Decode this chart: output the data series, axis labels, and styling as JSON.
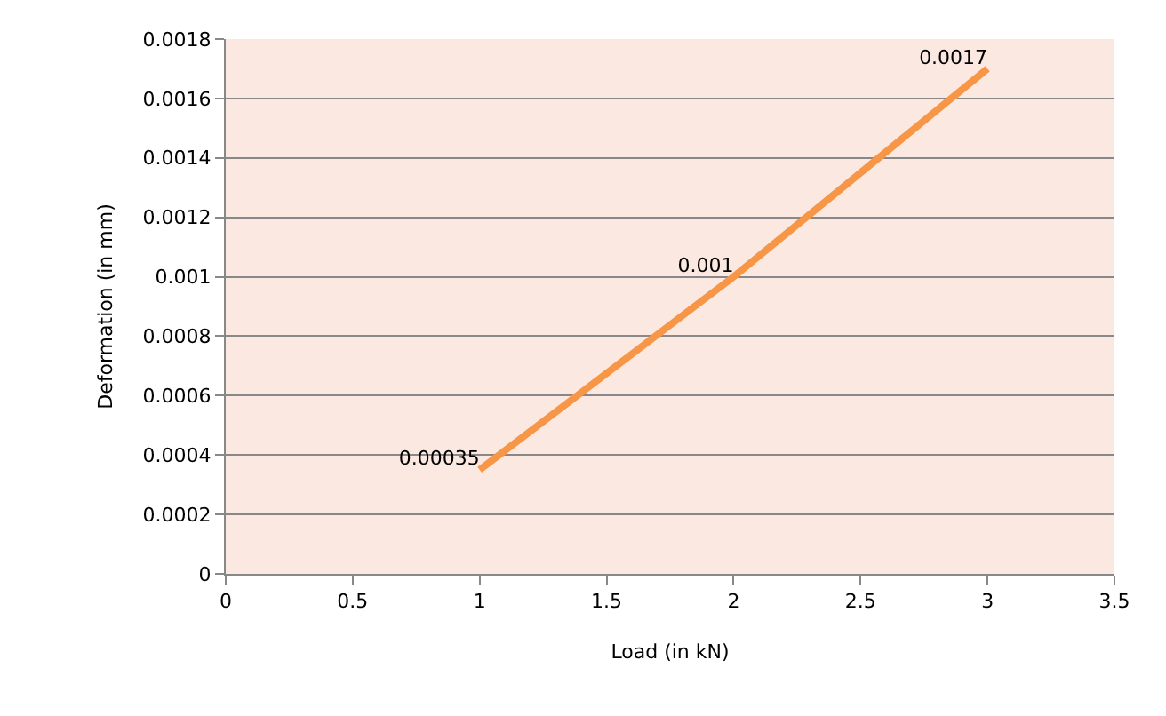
{
  "chart_data": {
    "type": "line",
    "xlabel": "Load (in kN)",
    "ylabel": "Deformation (in mm)",
    "x": [
      1,
      2,
      3
    ],
    "series": [
      {
        "color": "#f79646",
        "values": [
          0.00035,
          0.001,
          0.0017
        ]
      }
    ],
    "xlim": [
      0,
      3.5
    ],
    "xticks": [
      0,
      0.5,
      1,
      1.5,
      2,
      2.5,
      3,
      3.5
    ],
    "ylim": [
      0,
      0.0018
    ],
    "yticks": [
      0,
      0.0002,
      0.0004,
      0.0006,
      0.0008,
      0.001,
      0.0012,
      0.0014,
      0.0016,
      0.0018
    ],
    "grid": "y",
    "marker": "none",
    "line_style": "solid",
    "data_labels": true
  }
}
